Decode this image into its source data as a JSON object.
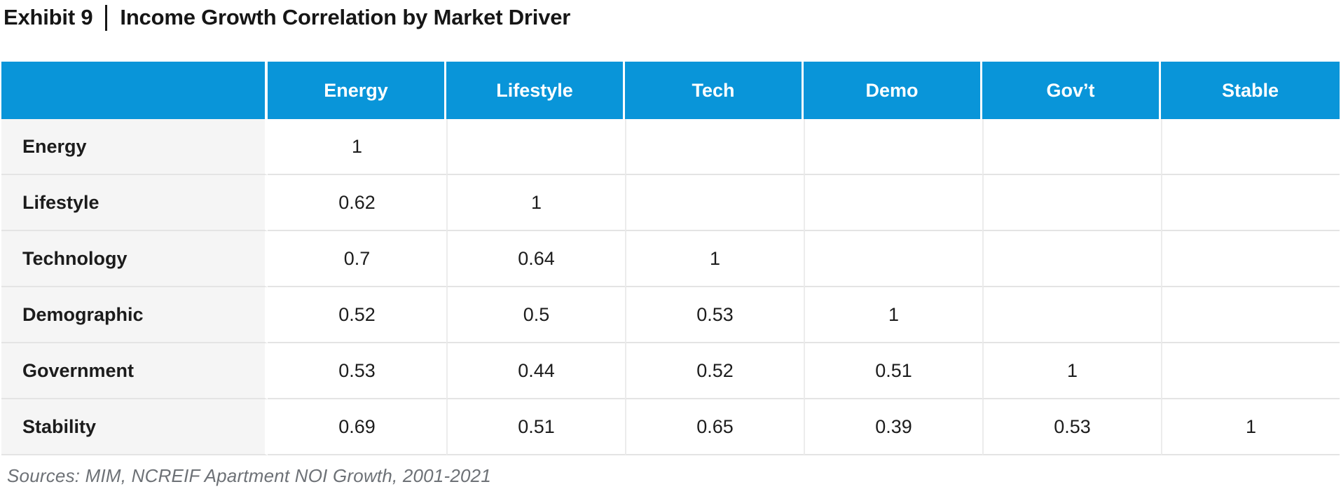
{
  "title": {
    "exhibit_label": "Exhibit 9",
    "title_text": "Income Growth Correlation by Market Driver"
  },
  "chart_data": {
    "type": "table",
    "title": "Exhibit 9 | Income Growth Correlation by Market Driver",
    "columns": [
      "",
      "Energy",
      "Lifestyle",
      "Tech",
      "Demo",
      "Gov’t",
      "Stable"
    ],
    "row_labels": [
      "Energy",
      "Lifestyle",
      "Technology",
      "Demographic",
      "Government",
      "Stability"
    ],
    "matrix": [
      [
        "1",
        "",
        "",
        "",
        "",
        ""
      ],
      [
        "0.62",
        "1",
        "",
        "",
        "",
        ""
      ],
      [
        "0.7",
        "0.64",
        "1",
        "",
        "",
        ""
      ],
      [
        "0.52",
        "0.5",
        "0.53",
        "1",
        "",
        ""
      ],
      [
        "0.53",
        "0.44",
        "0.52",
        "0.51",
        "1",
        ""
      ],
      [
        "0.69",
        "0.51",
        "0.65",
        "0.39",
        "0.53",
        "1"
      ]
    ],
    "source": "Sources: MIM, NCREIF Apartment NOI Growth, 2001-2021"
  },
  "colors": {
    "header_bg": "#0995d9",
    "header_text": "#ffffff",
    "label_bg": "#f5f5f5",
    "row_border": "#e4e4e4",
    "title_text": "#161616",
    "source_text": "#6d7176"
  }
}
